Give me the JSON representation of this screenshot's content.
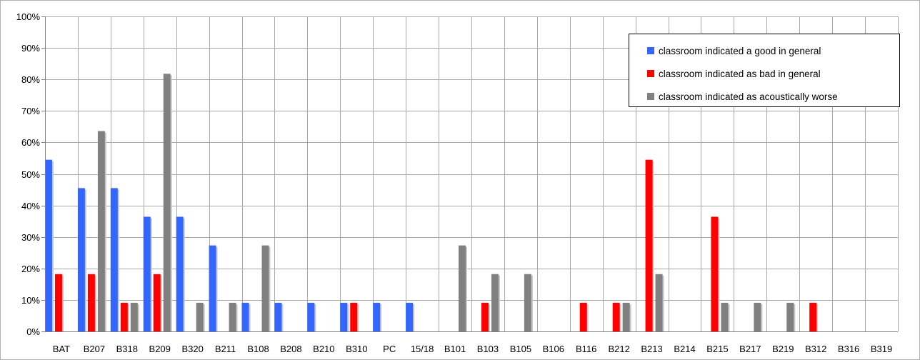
{
  "chart_data": {
    "type": "bar",
    "categories": [
      "BAT",
      "B207",
      "B318",
      "B209",
      "B320",
      "B211",
      "B108",
      "B208",
      "B210",
      "B310",
      "PC",
      "15/18",
      "B101",
      "B103",
      "B105",
      "B106",
      "B116",
      "B212",
      "B213",
      "B214",
      "B215",
      "B217",
      "B219",
      "B312",
      "B316",
      "B319"
    ],
    "series": [
      {
        "name": "classroom indicated a good in general",
        "color": "#3366ff",
        "values": [
          0.545,
          0.455,
          0.455,
          0.364,
          0.364,
          0.273,
          0.091,
          0.091,
          0.091,
          0.091,
          0.091,
          0.091,
          0,
          0,
          0,
          0,
          0,
          0,
          0,
          0,
          0,
          0,
          0,
          0,
          0,
          0
        ]
      },
      {
        "name": "classroom indicated as bad in general",
        "color": "#ff0000",
        "values": [
          0.182,
          0.182,
          0.091,
          0.182,
          0,
          0,
          0,
          0,
          0,
          0.091,
          0,
          0,
          0,
          0.091,
          0,
          0,
          0.091,
          0.091,
          0.545,
          0,
          0.364,
          0,
          0,
          0.091,
          0,
          0
        ]
      },
      {
        "name": "classroom indicated as acoustically worse",
        "color": "#808080",
        "values": [
          0,
          0.636,
          0.091,
          0.818,
          0.091,
          0.091,
          0.273,
          0,
          0,
          0,
          0,
          0,
          0.273,
          0.182,
          0.182,
          0,
          0,
          0.091,
          0.182,
          0,
          0.091,
          0.091,
          0.091,
          0,
          0,
          0
        ]
      }
    ],
    "yticks": [
      "0%",
      "10%",
      "20%",
      "30%",
      "40%",
      "50%",
      "60%",
      "70%",
      "80%",
      "90%",
      "100%"
    ],
    "ylim": [
      0,
      1
    ],
    "grid": true,
    "legend_position": "top-right"
  }
}
